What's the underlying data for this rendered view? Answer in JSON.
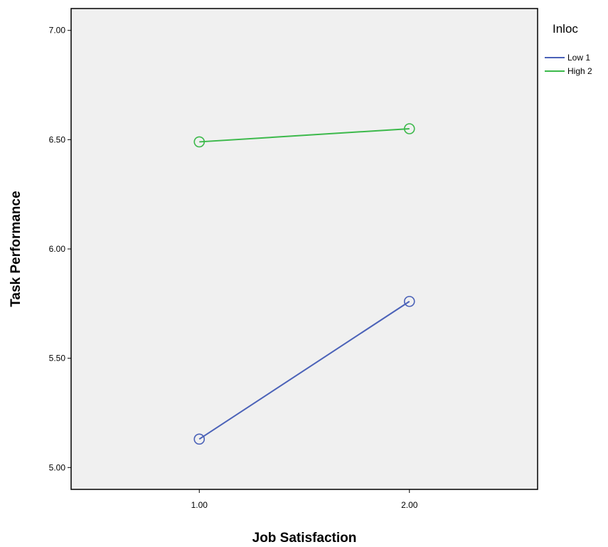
{
  "chart_data": {
    "type": "line",
    "title": "",
    "xlabel": "Job Satisfaction",
    "ylabel": "Task Performance",
    "x_categories": [
      "1.00",
      "2.00"
    ],
    "x_values": [
      1.0,
      2.0
    ],
    "xlim": [
      0.39,
      2.61
    ],
    "ylim": [
      4.9,
      7.1
    ],
    "y_ticks": [
      5.0,
      5.5,
      6.0,
      6.5,
      7.0
    ],
    "y_tick_labels": [
      "5.00",
      "5.50",
      "6.00",
      "6.50",
      "7.00"
    ],
    "grid": false,
    "legend": {
      "title": "Inloc",
      "position": "right"
    },
    "series": [
      {
        "name": "Low 1",
        "color": "#4b62b8",
        "values": [
          5.13,
          5.76
        ]
      },
      {
        "name": "High 2",
        "color": "#3cb94b",
        "values": [
          6.49,
          6.55
        ]
      }
    ],
    "marker": "open-circle",
    "plot_background": "#f0f0f0"
  }
}
